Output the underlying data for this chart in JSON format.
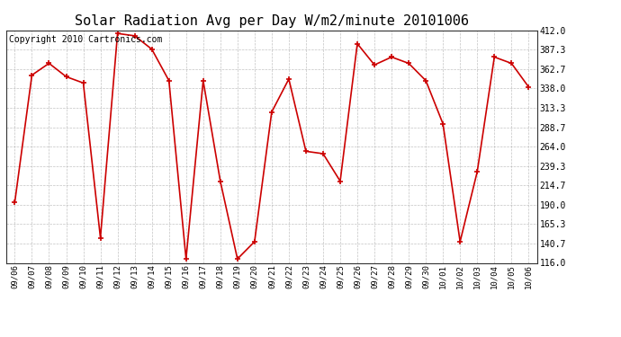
{
  "title": "Solar Radiation Avg per Day W/m2/minute 20101006",
  "copyright_text": "Copyright 2010 Cartronics.com",
  "dates": [
    "09/06",
    "09/07",
    "09/08",
    "09/09",
    "09/10",
    "09/11",
    "09/12",
    "09/13",
    "09/14",
    "09/15",
    "09/16",
    "09/17",
    "09/18",
    "09/19",
    "09/20",
    "09/21",
    "09/22",
    "09/23",
    "09/24",
    "09/25",
    "09/26",
    "09/27",
    "09/28",
    "09/29",
    "09/30",
    "10/01",
    "10/02",
    "10/03",
    "10/04",
    "10/05",
    "10/06"
  ],
  "values": [
    193.0,
    355.0,
    370.0,
    353.0,
    345.0,
    148.0,
    408.0,
    405.0,
    388.0,
    348.0,
    121.0,
    348.0,
    220.0,
    121.0,
    143.0,
    308.0,
    350.0,
    258.0,
    255.0,
    220.0,
    395.0,
    368.0,
    378.0,
    370.0,
    348.0,
    293.0,
    143.0,
    232.0,
    378.0,
    370.0,
    340.0
  ],
  "ylim": [
    116.0,
    412.0
  ],
  "yticks": [
    116.0,
    140.7,
    165.3,
    190.0,
    214.7,
    239.3,
    264.0,
    288.7,
    313.3,
    338.0,
    362.7,
    387.3,
    412.0
  ],
  "ytick_labels": [
    "116.0",
    "140.7",
    "165.3",
    "190.0",
    "214.7",
    "239.3",
    "264.0",
    "288.7",
    "313.3",
    "338.0",
    "362.7",
    "387.3",
    "412.0"
  ],
  "line_color": "#cc0000",
  "marker_color": "#cc0000",
  "bg_color": "#ffffff",
  "plot_bg_color": "#ffffff",
  "grid_color": "#aaaaaa",
  "title_fontsize": 11,
  "copyright_fontsize": 7
}
